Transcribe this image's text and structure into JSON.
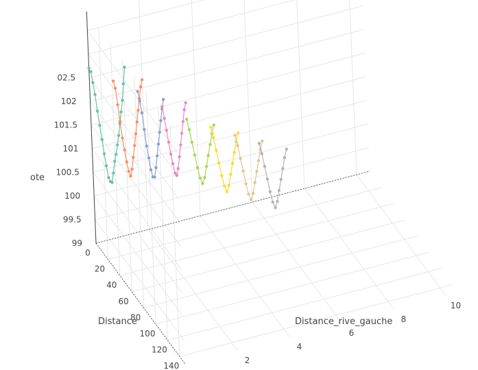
{
  "chart_data": {
    "type": "line3d",
    "axes": {
      "x": {
        "title": "Distance",
        "ticks": [
          "0",
          "20",
          "40",
          "60",
          "80",
          "100",
          "120",
          "140"
        ]
      },
      "y": {
        "title": "Distance_rive_gauche",
        "ticks": [
          "0",
          "2",
          "4",
          "6",
          "8",
          "10"
        ]
      },
      "z": {
        "title": "ote",
        "ticks": [
          "99",
          "99.5",
          "100",
          "100.5",
          "101",
          "101.5",
          "102",
          "02.5"
        ]
      }
    },
    "grid": true,
    "legend": "none",
    "series": [
      {
        "color": "#66c2a5",
        "points": [
          [
            0,
            0,
            102.7
          ],
          [
            3,
            0,
            102.68
          ],
          [
            6,
            0,
            102.5
          ],
          [
            9,
            0,
            102.3
          ],
          [
            12,
            0,
            102.0
          ],
          [
            15,
            0,
            101.75
          ],
          [
            18,
            0,
            101.5
          ],
          [
            21,
            0,
            101.25
          ],
          [
            24,
            0,
            101.05
          ],
          [
            27,
            0,
            100.85
          ],
          [
            30,
            0,
            100.82
          ],
          [
            33,
            0,
            100.85
          ],
          [
            36,
            0,
            101.1
          ],
          [
            39,
            0,
            101.4
          ],
          [
            42,
            0,
            101.6
          ],
          [
            45,
            0,
            101.85
          ],
          [
            48,
            0,
            102.1
          ],
          [
            51,
            0,
            102.4
          ],
          [
            54,
            0,
            102.7
          ],
          [
            57,
            0,
            103.0
          ],
          [
            60,
            0,
            103.4
          ],
          [
            63,
            0,
            103.8
          ]
        ]
      },
      {
        "color": "#fc8d62",
        "points": [
          [
            5,
            0.8,
            102.4
          ],
          [
            8,
            0.8,
            102.3
          ],
          [
            11,
            0.8,
            102.0
          ],
          [
            14,
            0.8,
            101.7
          ],
          [
            17,
            0.8,
            101.4
          ],
          [
            20,
            0.8,
            101.2
          ],
          [
            23,
            0.8,
            101.0
          ],
          [
            26,
            0.8,
            100.85
          ],
          [
            29,
            0.8,
            100.8
          ],
          [
            32,
            0.8,
            101.0
          ],
          [
            35,
            0.8,
            101.3
          ],
          [
            38,
            0.8,
            101.6
          ],
          [
            41,
            0.8,
            101.9
          ],
          [
            44,
            0.8,
            102.2
          ],
          [
            47,
            0.8,
            102.5
          ],
          [
            50,
            0.8,
            102.8
          ],
          [
            53,
            0.8,
            103.1
          ],
          [
            56,
            0.8,
            103.3
          ]
        ]
      },
      {
        "color": "#8da0cb",
        "points": [
          [
            10,
            1.6,
            102.15
          ],
          [
            13,
            1.6,
            102.0
          ],
          [
            16,
            1.6,
            101.8
          ],
          [
            19,
            1.6,
            101.5
          ],
          [
            22,
            1.6,
            101.2
          ],
          [
            25,
            1.6,
            101.0
          ],
          [
            28,
            1.6,
            100.8
          ],
          [
            31,
            1.6,
            100.7
          ],
          [
            34,
            1.6,
            100.75
          ],
          [
            37,
            1.6,
            101.0
          ],
          [
            40,
            1.6,
            101.3
          ],
          [
            43,
            1.6,
            101.6
          ],
          [
            46,
            1.6,
            101.9
          ],
          [
            49,
            1.6,
            102.2
          ],
          [
            52,
            1.6,
            102.5
          ],
          [
            55,
            1.6,
            102.75
          ]
        ]
      },
      {
        "color": "#e78ac3",
        "points": [
          [
            15,
            2.4,
            101.8
          ],
          [
            18,
            2.4,
            101.6
          ],
          [
            21,
            2.4,
            101.4
          ],
          [
            24,
            2.4,
            101.2
          ],
          [
            27,
            2.4,
            101.0
          ],
          [
            30,
            2.4,
            100.85
          ],
          [
            33,
            2.4,
            100.7
          ],
          [
            36,
            2.4,
            100.7
          ],
          [
            39,
            2.4,
            100.9
          ],
          [
            42,
            2.4,
            101.2
          ],
          [
            45,
            2.4,
            101.5
          ],
          [
            48,
            2.4,
            101.8
          ],
          [
            51,
            2.4,
            102.1
          ],
          [
            54,
            2.4,
            102.4
          ],
          [
            57,
            2.4,
            102.6
          ]
        ]
      },
      {
        "color": "#a6d854",
        "points": [
          [
            20,
            3.2,
            101.5
          ],
          [
            24,
            3.2,
            101.35
          ],
          [
            28,
            3.2,
            101.15
          ],
          [
            32,
            3.2,
            100.95
          ],
          [
            36,
            3.2,
            100.75
          ],
          [
            40,
            3.2,
            100.6
          ],
          [
            44,
            3.2,
            100.55
          ],
          [
            48,
            3.2,
            100.75
          ],
          [
            52,
            3.2,
            101.05
          ],
          [
            56,
            3.2,
            101.35
          ],
          [
            60,
            3.2,
            101.65
          ],
          [
            64,
            3.2,
            101.95
          ],
          [
            68,
            3.2,
            102.2
          ]
        ]
      },
      {
        "color": "#ffd92f",
        "points": [
          [
            25,
            4.0,
            101.3
          ],
          [
            29,
            4.0,
            101.15
          ],
          [
            33,
            4.0,
            100.95
          ],
          [
            37,
            4.0,
            100.75
          ],
          [
            41,
            4.0,
            100.55
          ],
          [
            45,
            4.0,
            100.4
          ],
          [
            49,
            4.0,
            100.35
          ],
          [
            53,
            4.0,
            100.55
          ],
          [
            57,
            4.0,
            100.85
          ],
          [
            61,
            4.0,
            101.15
          ],
          [
            65,
            4.0,
            101.45
          ],
          [
            69,
            4.0,
            101.75
          ],
          [
            73,
            4.0,
            102.0
          ]
        ]
      },
      {
        "color": "#e5c494",
        "points": [
          [
            30,
            4.8,
            101.1
          ],
          [
            34,
            4.8,
            100.95
          ],
          [
            38,
            4.8,
            100.75
          ],
          [
            42,
            4.8,
            100.55
          ],
          [
            46,
            4.8,
            100.35
          ],
          [
            50,
            4.8,
            100.2
          ],
          [
            54,
            4.8,
            100.15
          ],
          [
            58,
            4.8,
            100.35
          ],
          [
            62,
            4.8,
            100.65
          ],
          [
            66,
            4.8,
            100.95
          ],
          [
            70,
            4.8,
            101.25
          ],
          [
            74,
            4.8,
            101.55
          ],
          [
            78,
            4.8,
            101.8
          ]
        ]
      },
      {
        "color": "#b3b3b3",
        "points": [
          [
            35,
            5.6,
            100.9
          ],
          [
            39,
            5.6,
            100.75
          ],
          [
            43,
            5.6,
            100.55
          ],
          [
            47,
            5.6,
            100.35
          ],
          [
            51,
            5.6,
            100.15
          ],
          [
            55,
            5.6,
            100.0
          ],
          [
            59,
            5.6,
            99.95
          ],
          [
            63,
            5.6,
            100.15
          ],
          [
            67,
            5.6,
            100.45
          ],
          [
            71,
            5.6,
            100.75
          ],
          [
            75,
            5.6,
            101.05
          ],
          [
            79,
            5.6,
            101.35
          ],
          [
            83,
            5.6,
            101.6
          ]
        ]
      }
    ]
  }
}
